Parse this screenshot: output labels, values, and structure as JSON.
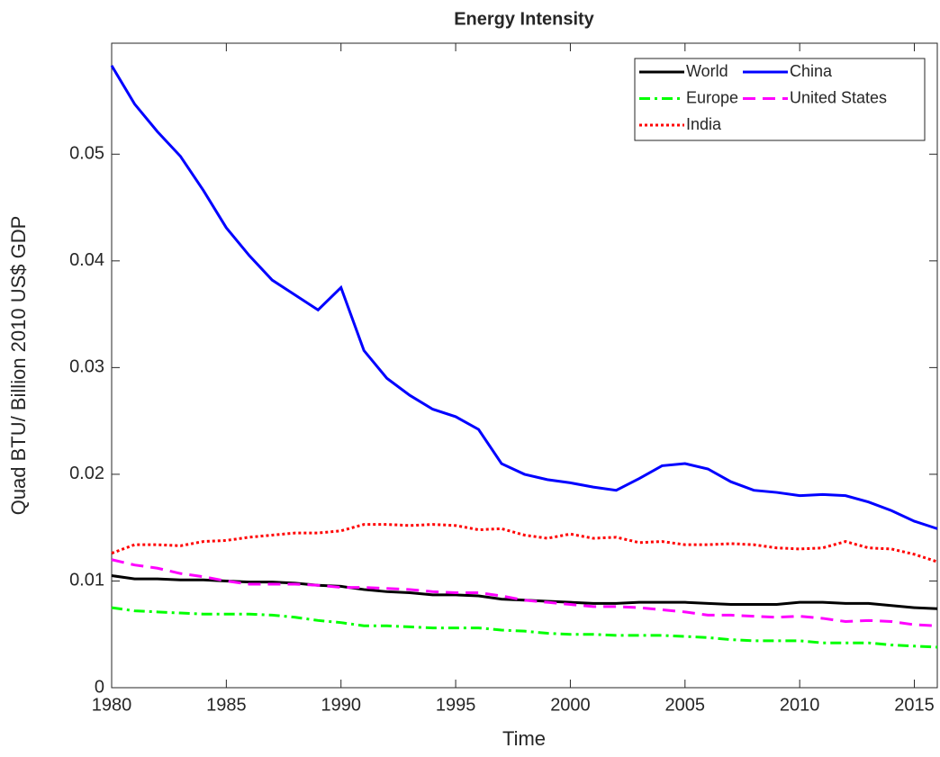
{
  "chart_data": {
    "type": "line",
    "title": "Energy Intensity",
    "x_label": "Time",
    "y_label": "Quad BTU/ Billion 2010 US$ GDP",
    "x": [
      1980,
      1981,
      1982,
      1983,
      1984,
      1985,
      1986,
      1987,
      1988,
      1989,
      1990,
      1991,
      1992,
      1993,
      1994,
      1995,
      1996,
      1997,
      1998,
      1999,
      2000,
      2001,
      2002,
      2003,
      2004,
      2005,
      2006,
      2007,
      2008,
      2009,
      2010,
      2011,
      2012,
      2013,
      2014,
      2015,
      2016
    ],
    "series": [
      {
        "name": "World",
        "color": "#000000",
        "dash": "solid",
        "values": [
          0.0105,
          0.0102,
          0.0102,
          0.0101,
          0.0101,
          0.01,
          0.0099,
          0.0099,
          0.0098,
          0.0096,
          0.0095,
          0.0092,
          0.009,
          0.0089,
          0.0087,
          0.0087,
          0.0086,
          0.0083,
          0.0082,
          0.0081,
          0.008,
          0.0079,
          0.0079,
          0.008,
          0.008,
          0.008,
          0.0079,
          0.0078,
          0.0078,
          0.0078,
          0.008,
          0.008,
          0.0079,
          0.0079,
          0.0077,
          0.0075,
          0.0074
        ]
      },
      {
        "name": "China",
        "color": "#0000ff",
        "dash": "solid",
        "values": [
          0.0583,
          0.0547,
          0.0521,
          0.0498,
          0.0466,
          0.0431,
          0.0405,
          0.0382,
          0.0368,
          0.0354,
          0.0375,
          0.0316,
          0.029,
          0.0274,
          0.0261,
          0.0254,
          0.0242,
          0.021,
          0.02,
          0.0195,
          0.0192,
          0.0188,
          0.0185,
          0.0196,
          0.0208,
          0.021,
          0.0205,
          0.0193,
          0.0185,
          0.0183,
          0.018,
          0.0181,
          0.018,
          0.0174,
          0.0166,
          0.0156,
          0.0149
        ]
      },
      {
        "name": "Europe",
        "color": "#00ff00",
        "dash": "dashdot",
        "values": [
          0.0075,
          0.0072,
          0.0071,
          0.007,
          0.0069,
          0.0069,
          0.0069,
          0.0068,
          0.0066,
          0.0063,
          0.0061,
          0.0058,
          0.0058,
          0.0057,
          0.0056,
          0.0056,
          0.0056,
          0.0054,
          0.0053,
          0.0051,
          0.005,
          0.005,
          0.0049,
          0.0049,
          0.0049,
          0.0048,
          0.0047,
          0.0045,
          0.0044,
          0.0044,
          0.0044,
          0.0042,
          0.0042,
          0.0042,
          0.004,
          0.0039,
          0.0038
        ]
      },
      {
        "name": "United States",
        "color": "#ff00ff",
        "dash": "dashed",
        "values": [
          0.012,
          0.0115,
          0.0112,
          0.0107,
          0.0104,
          0.01,
          0.0097,
          0.0097,
          0.0097,
          0.0096,
          0.0094,
          0.0094,
          0.0093,
          0.0092,
          0.009,
          0.0089,
          0.0089,
          0.0086,
          0.0082,
          0.008,
          0.0078,
          0.0076,
          0.0076,
          0.0075,
          0.0073,
          0.0071,
          0.0068,
          0.0068,
          0.0067,
          0.0066,
          0.0067,
          0.0065,
          0.0062,
          0.0063,
          0.0062,
          0.0059,
          0.0058
        ]
      },
      {
        "name": "India",
        "color": "#ff0000",
        "dash": "dotted",
        "values": [
          0.0126,
          0.0134,
          0.0134,
          0.0133,
          0.0137,
          0.0138,
          0.0141,
          0.0143,
          0.0145,
          0.0145,
          0.0147,
          0.0153,
          0.0153,
          0.0152,
          0.0153,
          0.0152,
          0.0148,
          0.0149,
          0.0143,
          0.014,
          0.0144,
          0.014,
          0.0141,
          0.0136,
          0.0137,
          0.0134,
          0.0134,
          0.0135,
          0.0134,
          0.0131,
          0.013,
          0.0131,
          0.0137,
          0.0131,
          0.013,
          0.0125,
          0.0118
        ]
      }
    ],
    "xlim": [
      1980,
      2016
    ],
    "xticks": [
      1980,
      1985,
      1990,
      1995,
      2000,
      2005,
      2010,
      2015
    ],
    "ylim": [
      0,
      0.0604
    ],
    "yticks": [
      0,
      0.01,
      0.02,
      0.03,
      0.04,
      0.05
    ],
    "legend": "upper right"
  }
}
